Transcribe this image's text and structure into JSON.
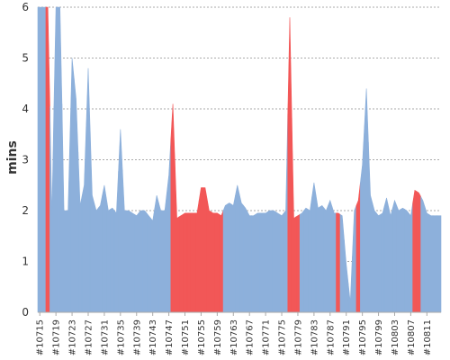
{
  "chart_data": {
    "type": "area",
    "title": "",
    "xlabel": "",
    "ylabel": "mins",
    "ylim": [
      0,
      6
    ],
    "yticks": [
      0,
      1,
      2,
      3,
      4,
      5,
      6
    ],
    "grid": true,
    "legend": "none",
    "colors": {
      "normal": "#8DB0DB",
      "highlight": "#F25757",
      "grid": "#8f8f8f",
      "axis": "#aaaaaa"
    },
    "x_ticks": [
      "#10715",
      "#10719",
      "#10723",
      "#10727",
      "#10731",
      "#10735",
      "#10739",
      "#10743",
      "#10747",
      "#10751",
      "#10755",
      "#10759",
      "#10763",
      "#10767",
      "#10771",
      "#10775",
      "#10779",
      "#10783",
      "#10787",
      "#10791",
      "#10795",
      "#10799",
      "#10803",
      "#10807",
      "#10811"
    ],
    "x": [
      "#10715",
      "#10716",
      "#10717",
      "#10718",
      "#10719",
      "#10720",
      "#10721",
      "#10722",
      "#10723",
      "#10724",
      "#10725",
      "#10726",
      "#10727",
      "#10728",
      "#10729",
      "#10730",
      "#10731",
      "#10732",
      "#10733",
      "#10734",
      "#10735",
      "#10736",
      "#10737",
      "#10738",
      "#10739",
      "#10740",
      "#10741",
      "#10742",
      "#10743",
      "#10744",
      "#10745",
      "#10746",
      "#10747",
      "#10748",
      "#10749",
      "#10750",
      "#10751",
      "#10752",
      "#10753",
      "#10754",
      "#10755",
      "#10756",
      "#10757",
      "#10758",
      "#10759",
      "#10760",
      "#10761",
      "#10762",
      "#10763",
      "#10764",
      "#10765",
      "#10766",
      "#10767",
      "#10768",
      "#10769",
      "#10770",
      "#10771",
      "#10772",
      "#10773",
      "#10774",
      "#10775",
      "#10776",
      "#10777",
      "#10778",
      "#10779",
      "#10780",
      "#10781",
      "#10782",
      "#10783",
      "#10784",
      "#10785",
      "#10786",
      "#10787",
      "#10788",
      "#10789",
      "#10790",
      "#10791",
      "#10792",
      "#10793",
      "#10794",
      "#10795",
      "#10796",
      "#10797",
      "#10798",
      "#10799",
      "#10800",
      "#10801",
      "#10802",
      "#10803",
      "#10804",
      "#10805",
      "#10806",
      "#10807",
      "#10808",
      "#10809",
      "#10810",
      "#10811",
      "#10812",
      "#10813",
      "#10814"
    ],
    "values": [
      6.2,
      6.2,
      6.2,
      1.9,
      6.2,
      6.2,
      2.0,
      2.0,
      5.0,
      4.2,
      2.1,
      2.5,
      4.8,
      2.3,
      2.0,
      2.1,
      2.5,
      2.0,
      2.05,
      1.95,
      3.6,
      2.0,
      2.0,
      1.95,
      1.9,
      2.0,
      2.0,
      1.9,
      1.8,
      2.3,
      2.0,
      2.0,
      2.7,
      4.1,
      1.85,
      1.9,
      1.95,
      1.95,
      1.95,
      1.95,
      2.45,
      2.45,
      2.0,
      1.95,
      1.95,
      1.9,
      2.1,
      2.15,
      2.1,
      2.5,
      2.15,
      2.05,
      1.9,
      1.9,
      1.95,
      1.95,
      1.95,
      2.0,
      2.0,
      1.95,
      1.9,
      2.0,
      5.8,
      1.85,
      1.9,
      1.95,
      2.05,
      2.0,
      2.55,
      2.05,
      2.1,
      2.0,
      2.2,
      1.95,
      1.95,
      1.9,
      0.95,
      0.2,
      2.0,
      2.2,
      2.9,
      4.4,
      2.3,
      2.0,
      1.9,
      1.95,
      2.25,
      1.9,
      2.2,
      2.0,
      2.05,
      2.0,
      1.9,
      2.4,
      2.35,
      2.2,
      1.95,
      1.9,
      1.9,
      1.9
    ],
    "highlight": [
      false,
      false,
      true,
      false,
      false,
      false,
      false,
      false,
      false,
      false,
      false,
      false,
      false,
      false,
      false,
      false,
      false,
      false,
      false,
      false,
      false,
      false,
      false,
      false,
      false,
      false,
      false,
      false,
      false,
      false,
      false,
      false,
      false,
      true,
      true,
      true,
      true,
      true,
      true,
      true,
      true,
      true,
      true,
      true,
      true,
      true,
      false,
      false,
      false,
      false,
      false,
      false,
      false,
      false,
      false,
      false,
      false,
      false,
      false,
      false,
      false,
      false,
      true,
      true,
      true,
      false,
      false,
      false,
      false,
      false,
      false,
      false,
      false,
      false,
      true,
      false,
      false,
      false,
      false,
      true,
      false,
      false,
      false,
      false,
      false,
      false,
      false,
      false,
      false,
      false,
      false,
      false,
      false,
      true,
      true,
      false,
      false,
      false,
      false,
      false
    ]
  }
}
